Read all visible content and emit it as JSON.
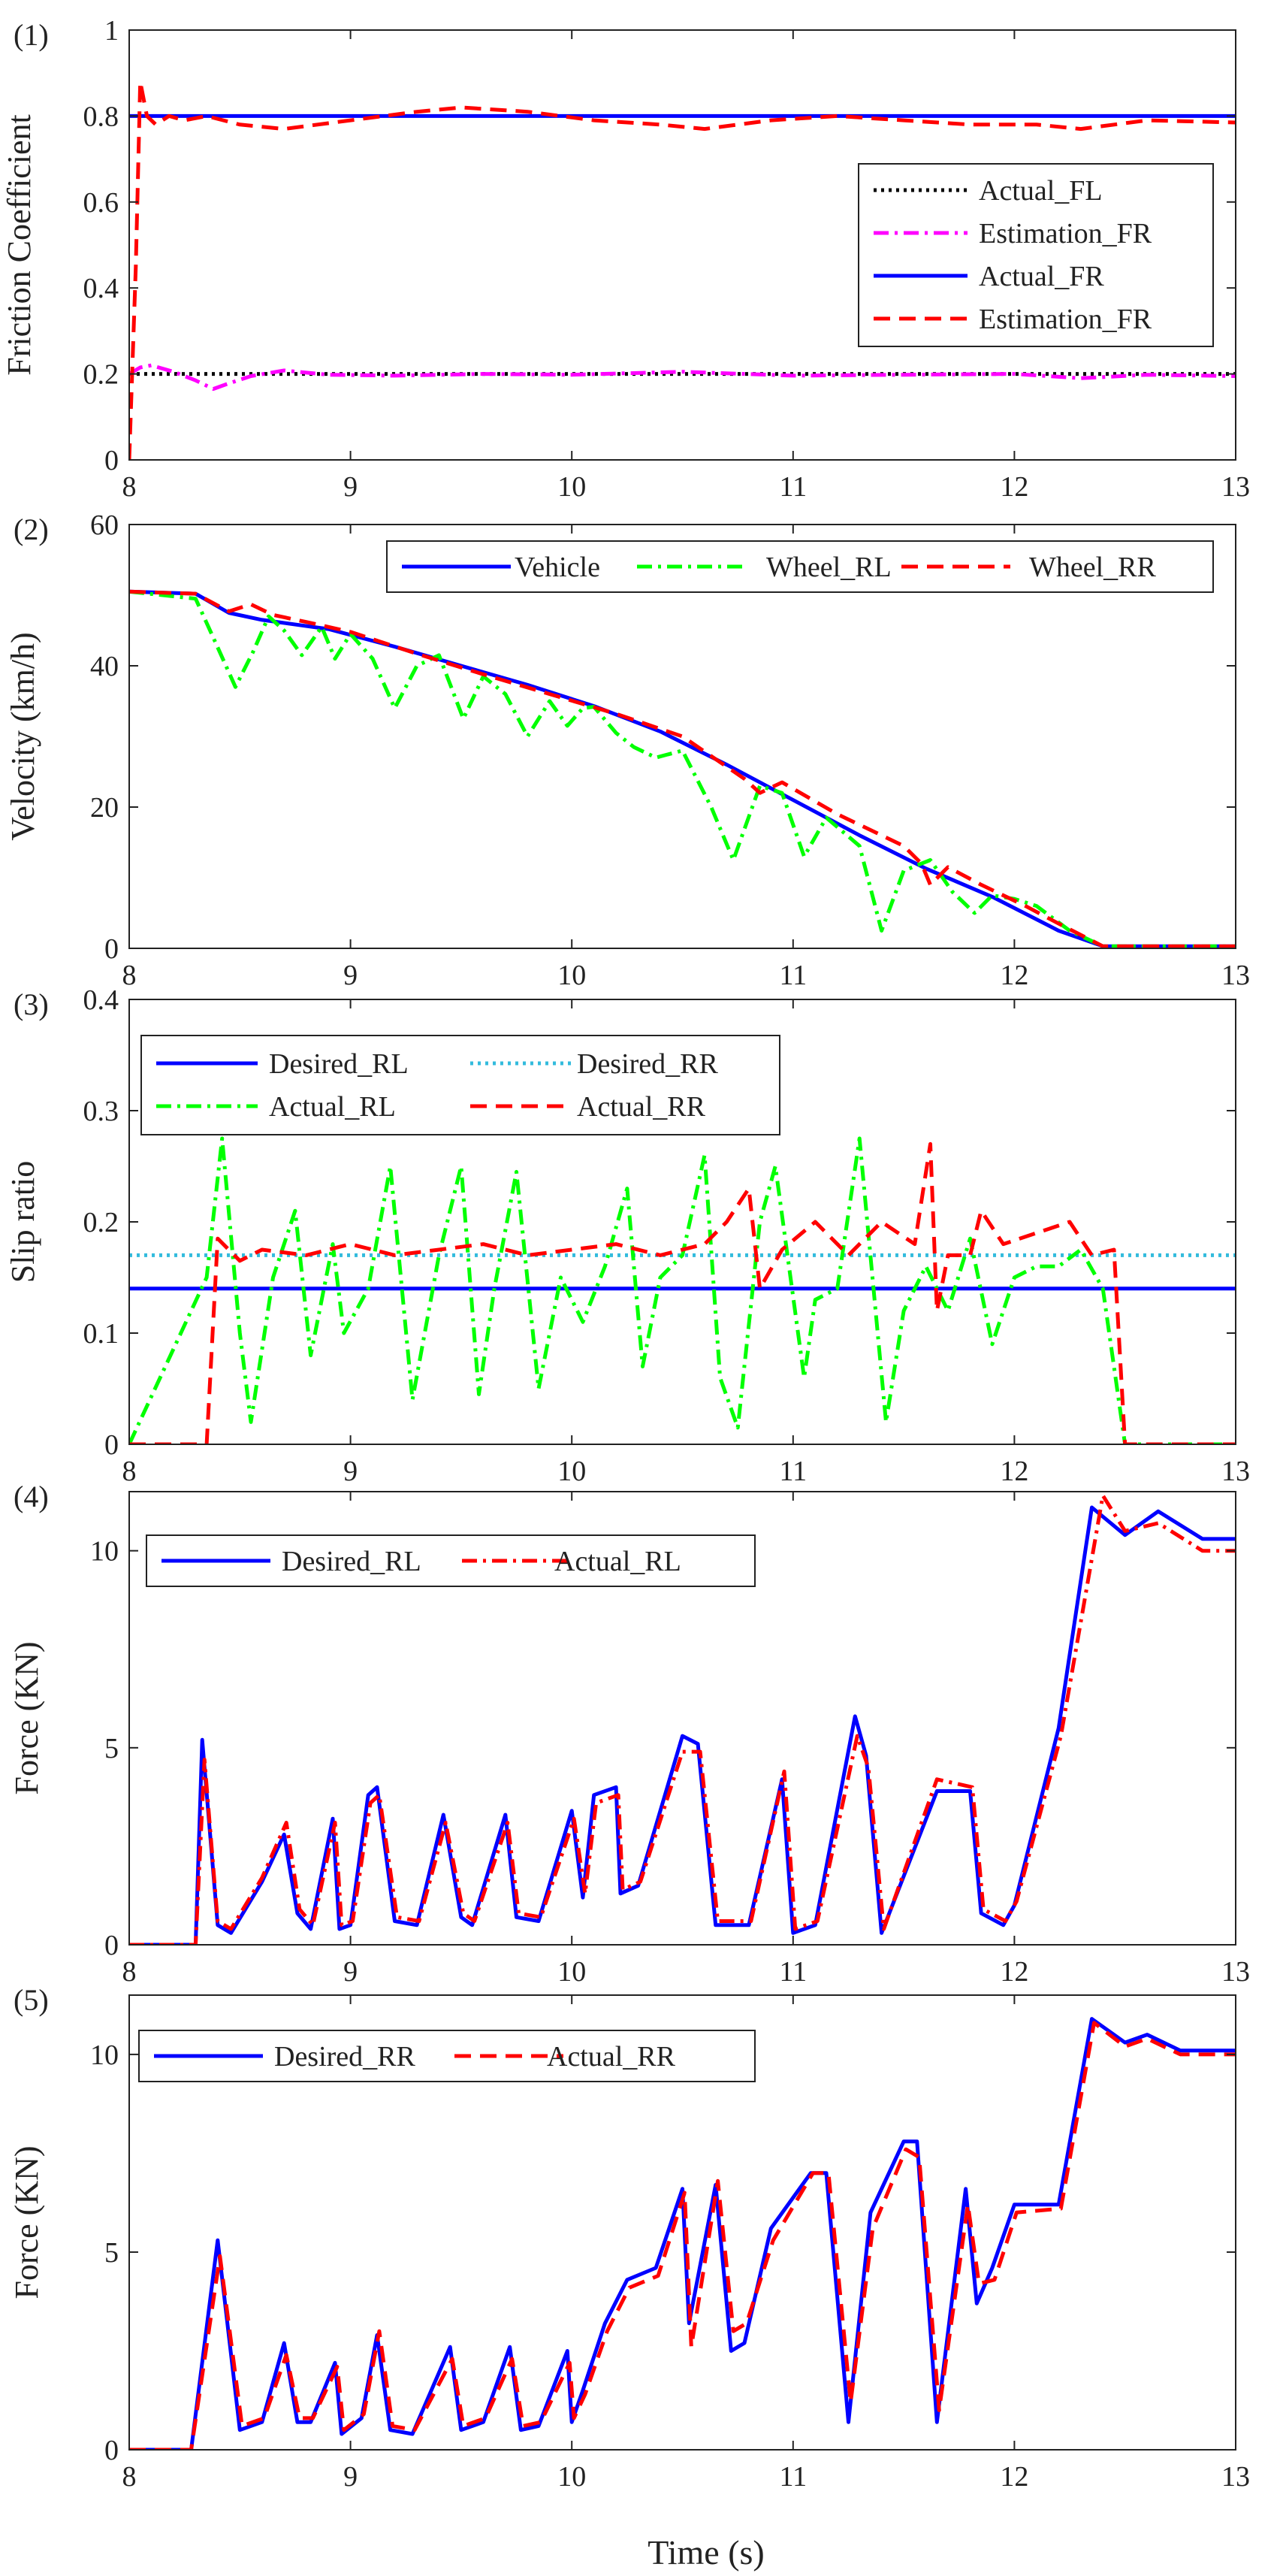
{
  "figure": {
    "xlabel": "Time (s)"
  },
  "colors": {
    "black": "#000000",
    "magenta": "#ff00ff",
    "blue": "#0000ff",
    "red": "#ff0000",
    "green": "#00ff00",
    "cyan": "#33bbdd"
  },
  "chart_data": [
    {
      "type": "line",
      "panel_label": "(1)",
      "ylabel": "Friction Coefficient",
      "xlim": [
        8,
        13
      ],
      "ylim": [
        0,
        1
      ],
      "xticks": [
        "8",
        "9",
        "10",
        "11",
        "12",
        "13"
      ],
      "yticks": [
        "0",
        "0.2",
        "0.4",
        "0.6",
        "0.8",
        "1"
      ],
      "legend_position": "right",
      "series": [
        {
          "name": "Actual_FL",
          "style": "dotted",
          "color": "#000000",
          "x": [
            8,
            13
          ],
          "y": [
            0.2,
            0.2
          ]
        },
        {
          "name": "Estimation_FR",
          "style": "dashdot",
          "color": "#ff00ff",
          "x": [
            8.0,
            8.05,
            8.1,
            8.2,
            8.3,
            8.38,
            8.45,
            8.55,
            8.7,
            8.9,
            9.2,
            9.6,
            10.0,
            10.5,
            11.0,
            11.5,
            12.0,
            12.3,
            12.6,
            13.0
          ],
          "y": [
            0.2,
            0.215,
            0.22,
            0.205,
            0.185,
            0.165,
            0.178,
            0.195,
            0.208,
            0.198,
            0.196,
            0.2,
            0.198,
            0.205,
            0.196,
            0.198,
            0.2,
            0.19,
            0.198,
            0.195
          ]
        },
        {
          "name": "Actual_FR",
          "style": "solid",
          "color": "#0000ff",
          "x": [
            8,
            13
          ],
          "y": [
            0.8,
            0.8
          ]
        },
        {
          "name": "Estimation_FR",
          "style": "dashed",
          "color": "#ff0000",
          "x": [
            8.0,
            8.03,
            8.05,
            8.08,
            8.12,
            8.18,
            8.25,
            8.35,
            8.5,
            8.7,
            9.0,
            9.3,
            9.5,
            9.8,
            10.1,
            10.4,
            10.6,
            10.9,
            11.2,
            11.5,
            11.8,
            12.1,
            12.3,
            12.6,
            13.0
          ],
          "y": [
            0.0,
            0.45,
            0.88,
            0.8,
            0.78,
            0.8,
            0.79,
            0.8,
            0.78,
            0.77,
            0.79,
            0.81,
            0.82,
            0.81,
            0.79,
            0.78,
            0.77,
            0.79,
            0.8,
            0.79,
            0.78,
            0.78,
            0.77,
            0.79,
            0.785
          ]
        }
      ]
    },
    {
      "type": "line",
      "panel_label": "(2)",
      "ylabel": "Velocity (km/h)",
      "xlim": [
        8,
        13
      ],
      "ylim": [
        0,
        60
      ],
      "xticks": [
        "8",
        "9",
        "10",
        "11",
        "12",
        "13"
      ],
      "yticks": [
        "0",
        "20",
        "40",
        "60"
      ],
      "legend_position": "top",
      "series": [
        {
          "name": "Vehicle",
          "style": "solid",
          "color": "#0000ff",
          "x": [
            8.0,
            8.3,
            8.45,
            8.6,
            8.9,
            9.2,
            9.5,
            9.8,
            10.1,
            10.4,
            10.7,
            11.0,
            11.3,
            11.6,
            11.9,
            12.2,
            12.4,
            13.0
          ],
          "y": [
            50.5,
            50.2,
            47.5,
            46.5,
            45.2,
            42.7,
            40.0,
            37.3,
            34.3,
            30.7,
            26.0,
            21.0,
            16.0,
            11.3,
            7.3,
            2.5,
            0.3,
            0.3
          ]
        },
        {
          "name": "Wheel_RL",
          "style": "dashdot",
          "color": "#00ff00",
          "x": [
            8.0,
            8.3,
            8.38,
            8.48,
            8.56,
            8.63,
            8.7,
            8.78,
            8.87,
            8.93,
            9.0,
            9.1,
            9.2,
            9.3,
            9.4,
            9.51,
            9.6,
            9.7,
            9.8,
            9.9,
            9.98,
            10.05,
            10.1,
            10.2,
            10.28,
            10.38,
            10.5,
            10.63,
            10.73,
            10.85,
            10.95,
            11.05,
            11.15,
            11.3,
            11.4,
            11.5,
            11.62,
            11.72,
            11.82,
            11.9,
            12.0,
            12.1,
            12.25,
            12.4,
            13.0
          ],
          "y": [
            50.5,
            49.5,
            44,
            37,
            42,
            47,
            45,
            41.5,
            45.5,
            41,
            44.5,
            41,
            34,
            40,
            41.5,
            32.5,
            38.5,
            36,
            30,
            35,
            31.5,
            34,
            34.2,
            30.5,
            28.5,
            27,
            28,
            20,
            12.5,
            23,
            22,
            13,
            18.5,
            14.5,
            2.5,
            11,
            12.5,
            8,
            5,
            7.5,
            7,
            6,
            2.5,
            0.3,
            0.3
          ]
        },
        {
          "name": "Wheel_RR",
          "style": "dashed",
          "color": "#ff0000",
          "x": [
            8.0,
            8.3,
            8.45,
            8.55,
            8.65,
            8.8,
            9.0,
            9.3,
            9.6,
            9.9,
            10.2,
            10.5,
            10.78,
            10.85,
            10.95,
            11.2,
            11.5,
            11.58,
            11.62,
            11.7,
            11.85,
            12.05,
            12.2,
            12.4,
            13.0
          ],
          "y": [
            50.5,
            50.2,
            47.7,
            48.7,
            47.2,
            46.2,
            44.8,
            41.7,
            38.8,
            36.0,
            33.2,
            30.0,
            24.0,
            22.0,
            23.5,
            19.0,
            14.5,
            12.0,
            9.0,
            11.5,
            9.0,
            6.0,
            3.5,
            0.3,
            0.3
          ]
        }
      ]
    },
    {
      "type": "line",
      "panel_label": "(3)",
      "ylabel": "Slip ratio",
      "xlim": [
        8,
        13
      ],
      "ylim": [
        0,
        0.4
      ],
      "xticks": [
        "8",
        "9",
        "10",
        "11",
        "12",
        "13"
      ],
      "yticks": [
        "0",
        "0.1",
        "0.2",
        "0.3",
        "0.4"
      ],
      "legend_position": "top-left",
      "series": [
        {
          "name": "Desired_RL",
          "style": "solid",
          "color": "#0000ff",
          "x": [
            8,
            13
          ],
          "y": [
            0.14,
            0.14
          ]
        },
        {
          "name": "Desired_RR",
          "style": "dotted",
          "color": "#33bbdd",
          "x": [
            8,
            13
          ],
          "y": [
            0.17,
            0.17
          ]
        },
        {
          "name": "Actual_RL",
          "style": "dashdot",
          "color": "#00ff00",
          "x": [
            8.0,
            8.35,
            8.42,
            8.5,
            8.55,
            8.65,
            8.75,
            8.82,
            8.92,
            8.97,
            9.08,
            9.18,
            9.28,
            9.4,
            9.5,
            9.58,
            9.65,
            9.75,
            9.85,
            9.95,
            10.05,
            10.15,
            10.25,
            10.32,
            10.4,
            10.5,
            10.6,
            10.67,
            10.75,
            10.85,
            10.92,
            11.05,
            11.1,
            11.2,
            11.3,
            11.42,
            11.5,
            11.6,
            11.7,
            11.8,
            11.9,
            12.0,
            12.1,
            12.2,
            12.3,
            12.4,
            12.5,
            13.0
          ],
          "y": [
            0.0,
            0.15,
            0.275,
            0.1,
            0.02,
            0.15,
            0.21,
            0.08,
            0.18,
            0.1,
            0.14,
            0.25,
            0.04,
            0.17,
            0.25,
            0.045,
            0.14,
            0.245,
            0.05,
            0.15,
            0.11,
            0.16,
            0.23,
            0.07,
            0.15,
            0.17,
            0.26,
            0.06,
            0.015,
            0.2,
            0.25,
            0.06,
            0.13,
            0.14,
            0.275,
            0.02,
            0.12,
            0.16,
            0.12,
            0.185,
            0.09,
            0.15,
            0.16,
            0.16,
            0.175,
            0.14,
            0.0,
            0.0
          ]
        },
        {
          "name": "Actual_RR",
          "style": "dashed",
          "color": "#ff0000",
          "x": [
            8.0,
            8.35,
            8.4,
            8.5,
            8.6,
            8.8,
            9.0,
            9.2,
            9.4,
            9.6,
            9.8,
            10.0,
            10.2,
            10.4,
            10.6,
            10.7,
            10.8,
            10.85,
            10.95,
            11.1,
            11.25,
            11.4,
            11.55,
            11.62,
            11.65,
            11.7,
            11.8,
            11.85,
            11.95,
            12.1,
            12.25,
            12.35,
            12.45,
            12.5,
            13.0
          ],
          "y": [
            0.0,
            0.0,
            0.185,
            0.165,
            0.175,
            0.17,
            0.18,
            0.17,
            0.175,
            0.18,
            0.17,
            0.175,
            0.18,
            0.17,
            0.18,
            0.2,
            0.23,
            0.14,
            0.175,
            0.2,
            0.17,
            0.2,
            0.18,
            0.27,
            0.12,
            0.17,
            0.17,
            0.21,
            0.18,
            0.19,
            0.2,
            0.17,
            0.175,
            0.0,
            0.0
          ]
        }
      ]
    },
    {
      "type": "line",
      "panel_label": "(4)",
      "ylabel": "Force (KN)",
      "xlim": [
        8,
        13
      ],
      "ylim": [
        0,
        11.5
      ],
      "xticks": [
        "8",
        "9",
        "10",
        "11",
        "12",
        "13"
      ],
      "yticks": [
        "0",
        "5",
        "10"
      ],
      "legend_position": "top-left",
      "series": [
        {
          "name": "Desired_RL",
          "style": "solid",
          "color": "#0000ff",
          "x": [
            8.0,
            8.3,
            8.33,
            8.4,
            8.46,
            8.6,
            8.7,
            8.76,
            8.82,
            8.92,
            8.95,
            9.0,
            9.08,
            9.12,
            9.2,
            9.3,
            9.42,
            9.5,
            9.55,
            9.7,
            9.75,
            9.85,
            10.0,
            10.05,
            10.1,
            10.2,
            10.22,
            10.3,
            10.5,
            10.57,
            10.65,
            10.8,
            10.95,
            11.0,
            11.1,
            11.28,
            11.33,
            11.4,
            11.65,
            11.8,
            11.85,
            11.95,
            12.0,
            12.2,
            12.35,
            12.5,
            12.65,
            12.85,
            13.0
          ],
          "y": [
            0.0,
            0.0,
            5.2,
            0.5,
            0.3,
            1.6,
            2.8,
            0.8,
            0.4,
            3.2,
            0.4,
            0.5,
            3.8,
            4.0,
            0.6,
            0.5,
            3.3,
            0.7,
            0.5,
            3.3,
            0.7,
            0.6,
            3.4,
            1.2,
            3.8,
            4.0,
            1.3,
            1.5,
            5.3,
            5.1,
            0.5,
            0.5,
            4.2,
            0.3,
            0.5,
            5.8,
            4.8,
            0.3,
            3.9,
            3.9,
            0.8,
            0.5,
            1.0,
            5.5,
            11.1,
            10.4,
            11.0,
            10.3,
            10.3
          ]
        },
        {
          "name": "Actual_RL",
          "style": "dashdot",
          "color": "#ff0000",
          "x": [
            8.0,
            8.3,
            8.34,
            8.4,
            8.46,
            8.6,
            8.71,
            8.77,
            8.83,
            8.93,
            8.96,
            9.01,
            9.09,
            9.13,
            9.21,
            9.31,
            9.43,
            9.51,
            9.56,
            9.71,
            9.76,
            9.86,
            10.01,
            10.06,
            10.11,
            10.21,
            10.23,
            10.31,
            10.5,
            10.58,
            10.66,
            10.81,
            10.96,
            11.01,
            11.11,
            11.29,
            11.34,
            11.41,
            11.65,
            11.81,
            11.86,
            11.96,
            12.01,
            12.21,
            12.4,
            12.5,
            12.65,
            12.85,
            13.0
          ],
          "y": [
            0.0,
            0.0,
            4.7,
            0.6,
            0.4,
            1.7,
            3.1,
            0.9,
            0.5,
            3.1,
            0.5,
            0.6,
            3.6,
            3.8,
            0.7,
            0.6,
            3.1,
            0.8,
            0.6,
            3.1,
            0.8,
            0.7,
            3.2,
            1.3,
            3.6,
            3.8,
            1.4,
            1.6,
            4.9,
            4.9,
            0.6,
            0.6,
            4.4,
            0.4,
            0.6,
            5.3,
            4.5,
            0.4,
            4.2,
            4.0,
            0.9,
            0.6,
            1.1,
            5.3,
            11.4,
            10.5,
            10.7,
            10.0,
            10.0
          ]
        }
      ]
    },
    {
      "type": "line",
      "panel_label": "(5)",
      "ylabel": "Force (KN)",
      "xlim": [
        8,
        13
      ],
      "ylim": [
        0,
        11.5
      ],
      "xticks": [
        "8",
        "9",
        "10",
        "11",
        "12",
        "13"
      ],
      "yticks": [
        "0",
        "5",
        "10"
      ],
      "legend_position": "top-left",
      "series": [
        {
          "name": "Desired_RR",
          "style": "solid",
          "color": "#0000ff",
          "x": [
            8.0,
            8.28,
            8.4,
            8.5,
            8.6,
            8.7,
            8.76,
            8.82,
            8.93,
            8.96,
            9.05,
            9.12,
            9.18,
            9.28,
            9.45,
            9.5,
            9.6,
            9.72,
            9.77,
            9.85,
            9.98,
            10.0,
            10.05,
            10.15,
            10.25,
            10.38,
            10.5,
            10.53,
            10.65,
            10.72,
            10.78,
            10.9,
            11.08,
            11.15,
            11.25,
            11.35,
            11.5,
            11.56,
            11.65,
            11.78,
            11.83,
            11.9,
            12.0,
            12.2,
            12.35,
            12.5,
            12.6,
            12.75,
            13.0
          ],
          "y": [
            0.0,
            0.0,
            5.3,
            0.5,
            0.7,
            2.7,
            0.7,
            0.7,
            2.2,
            0.4,
            0.8,
            2.9,
            0.5,
            0.4,
            2.6,
            0.5,
            0.7,
            2.6,
            0.5,
            0.6,
            2.5,
            0.7,
            1.5,
            3.2,
            4.3,
            4.6,
            6.6,
            3.2,
            6.7,
            2.5,
            2.7,
            5.6,
            7.0,
            7.0,
            0.7,
            6.0,
            7.8,
            7.8,
            0.7,
            6.6,
            3.7,
            4.6,
            6.2,
            6.2,
            10.9,
            10.3,
            10.5,
            10.1,
            10.1
          ]
        },
        {
          "name": "Actual_RR",
          "style": "dashed",
          "color": "#ff0000",
          "x": [
            8.0,
            8.28,
            8.41,
            8.51,
            8.61,
            8.71,
            8.77,
            8.83,
            8.94,
            8.97,
            9.06,
            9.13,
            9.19,
            9.29,
            9.46,
            9.51,
            9.61,
            9.73,
            9.78,
            9.86,
            9.99,
            10.01,
            10.06,
            10.16,
            10.26,
            10.39,
            10.51,
            10.54,
            10.66,
            10.73,
            10.79,
            10.91,
            11.09,
            11.16,
            11.26,
            11.36,
            11.51,
            11.57,
            11.66,
            11.79,
            11.84,
            11.91,
            12.01,
            12.21,
            12.36,
            12.5,
            12.6,
            12.75,
            13.0
          ],
          "y": [
            0.0,
            0.0,
            4.9,
            0.6,
            0.8,
            2.4,
            0.8,
            0.8,
            2.1,
            0.5,
            0.9,
            3.0,
            0.6,
            0.5,
            2.3,
            0.6,
            0.8,
            2.3,
            0.6,
            0.7,
            2.2,
            0.8,
            1.4,
            3.0,
            4.1,
            4.4,
            6.5,
            2.6,
            6.8,
            3.0,
            3.2,
            5.3,
            7.0,
            7.0,
            1.2,
            5.6,
            7.6,
            7.4,
            1.0,
            6.2,
            4.2,
            4.3,
            6.0,
            6.1,
            10.8,
            10.2,
            10.4,
            10.0,
            10.0
          ]
        }
      ]
    }
  ]
}
